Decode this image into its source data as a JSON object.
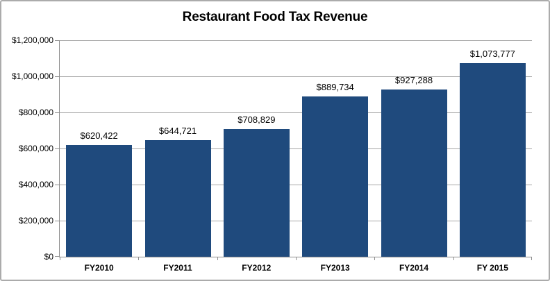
{
  "chart_data": {
    "type": "bar",
    "title": "Restaurant Food Tax Revenue",
    "categories": [
      "FY2010",
      "FY2011",
      "FY2012",
      "FY2013",
      "FY2014",
      "FY 2015"
    ],
    "values": [
      620422,
      644721,
      708829,
      889734,
      927288,
      1073777
    ],
    "data_labels": [
      "$620,422",
      "$644,721",
      "$708,829",
      "$889,734",
      "$927,288",
      "$1,073,777"
    ],
    "xlabel": "",
    "ylabel": "",
    "ylim": [
      0,
      1200000
    ],
    "y_tick_interval": 200000,
    "y_tick_labels": [
      "$1,200,000",
      "$1,000,000",
      "$800,000",
      "$600,000",
      "$400,000",
      "$200,000",
      "$0"
    ],
    "grid": true,
    "legend_position": "none",
    "colors": {
      "bar_fill": "#1F4A7D",
      "gridline": "#A6A6A6",
      "axis_line": "#8C8C8C",
      "text": "#000000",
      "frame_border": "#ABABAB",
      "background": "#FFFFFF"
    }
  }
}
